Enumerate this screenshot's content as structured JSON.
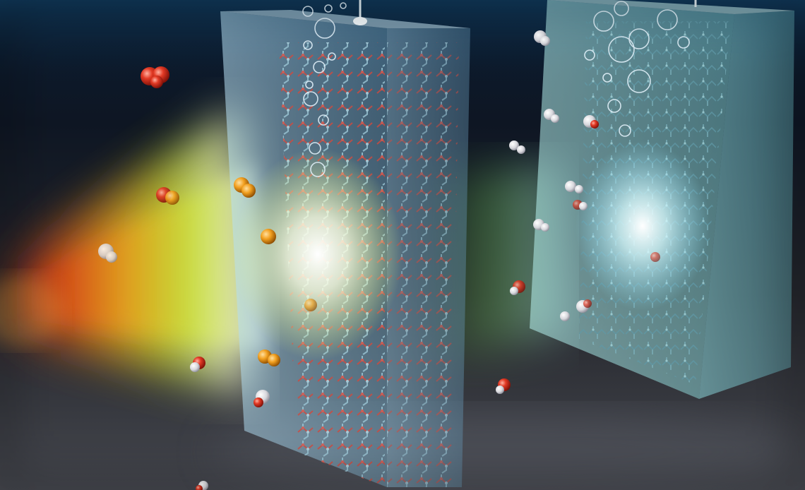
{
  "scene": {
    "kind": "scientific-illustration",
    "colors": {
      "background_top": "#0a1a2e",
      "background_bottom": "#3a3d44",
      "water_surface": "#0e2f4a",
      "slab_glass_left": "#9fd2ef",
      "slab_glass_right": "#9ee6e6",
      "lattice_red": "#d2483d",
      "lattice_blue": "#9cc7d6",
      "beam_red": "#e0401c",
      "beam_orange": "#f6a21e",
      "beam_yellow": "#e9f23a",
      "beam_green": "#9be33a",
      "glow_white": "#ffffff",
      "glow_cyan": "#d8fbff"
    }
  }
}
